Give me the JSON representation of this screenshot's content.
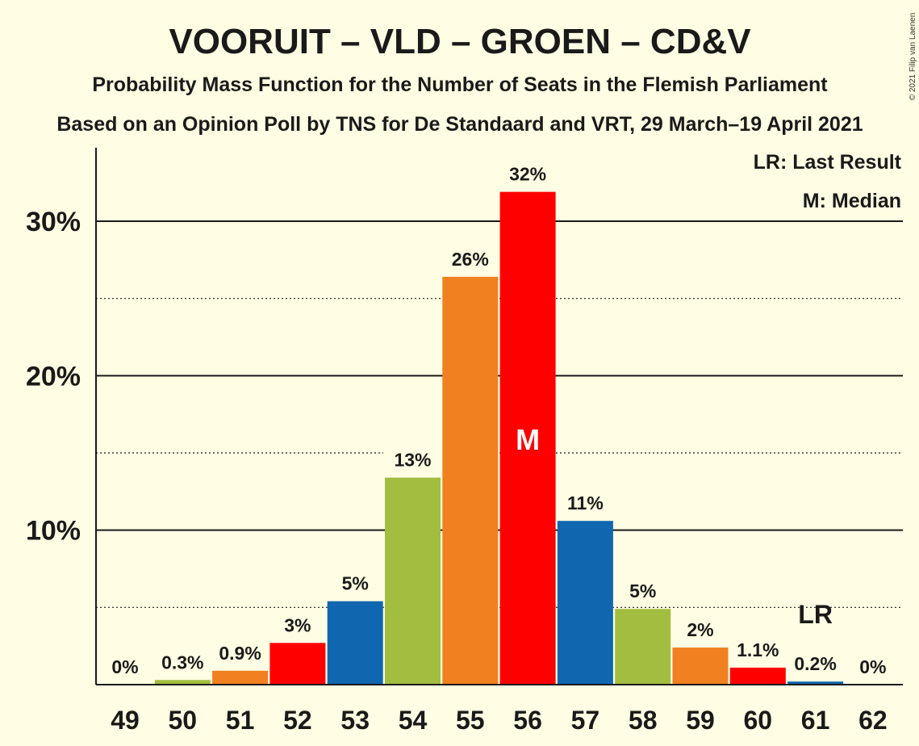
{
  "chart_data": {
    "type": "bar",
    "title": "VOORUIT – VLD – GROEN – CD&V",
    "subtitle": "Probability Mass Function for the Number of Seats in the Flemish Parliament",
    "subtitle2": "Based on an Opinion Poll by TNS for De Standaard and VRT, 29 March–19 April 2021",
    "copyright": "© 2021 Filip van Laenen",
    "legend": {
      "last_result": "LR: Last Result",
      "median": "M: Median"
    },
    "xlabel": "",
    "ylabel": "",
    "ylim": [
      0,
      34
    ],
    "yticks": [
      {
        "value": 10,
        "label": "10%"
      },
      {
        "value": 20,
        "label": "20%"
      },
      {
        "value": 30,
        "label": "30%"
      }
    ],
    "dotted_gridlines": [
      5,
      15,
      25
    ],
    "categories": [
      "49",
      "50",
      "51",
      "52",
      "53",
      "54",
      "55",
      "56",
      "57",
      "58",
      "59",
      "60",
      "61",
      "62"
    ],
    "values": [
      0,
      0.3,
      0.9,
      2.7,
      5.4,
      13.4,
      26.4,
      31.9,
      10.6,
      4.9,
      2.4,
      1.1,
      0.2,
      0
    ],
    "value_labels": [
      "0%",
      "0.3%",
      "0.9%",
      "3%",
      "5%",
      "13%",
      "26%",
      "32%",
      "11%",
      "5%",
      "2%",
      "1.1%",
      "0.2%",
      "0%"
    ],
    "colors": [
      "#F08020",
      "#A2BD40",
      "#F08020",
      "#FF0000",
      "#1166B0",
      "#A2BD40",
      "#F08020",
      "#FF0000",
      "#1166B0",
      "#A2BD40",
      "#F08020",
      "#FF0000",
      "#1166B0",
      "#A2BD40"
    ],
    "median": {
      "category": "56",
      "label": "M"
    },
    "last_result": {
      "category": "61",
      "label": "LR"
    }
  }
}
